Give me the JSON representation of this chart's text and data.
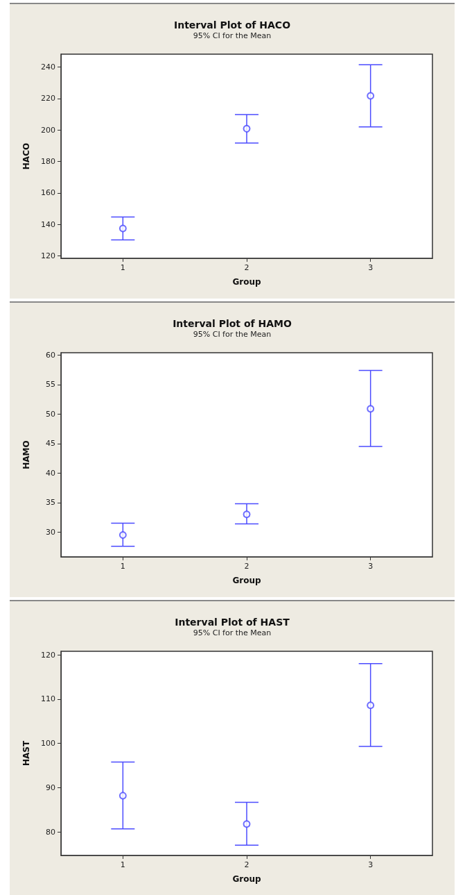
{
  "chart_data": [
    {
      "type": "scatter",
      "title": "Interval Plot of HACO",
      "subtitle": "95% CI for the Mean",
      "xlabel": "Group",
      "ylabel": "HACO",
      "categories": [
        "1",
        "2",
        "3"
      ],
      "series": [
        {
          "color": "#4b4bff",
          "values": [
            137.4,
            200.8,
            221.7
          ],
          "errors": [
            [
              130.1,
              144.7
            ],
            [
              191.7,
              209.8
            ],
            [
              202.0,
              241.5
            ]
          ]
        }
      ],
      "ylim": [
        118.4,
        248.2
      ],
      "yticks": [
        120,
        140,
        160,
        180,
        200,
        220,
        240
      ],
      "marker": "circle"
    },
    {
      "type": "scatter",
      "title": "Interval Plot of HAMO",
      "subtitle": "95% CI for the Mean",
      "xlabel": "Group",
      "ylabel": "HAMO",
      "categories": [
        "1",
        "2",
        "3"
      ],
      "series": [
        {
          "color": "#4b4bff",
          "values": [
            29.5,
            33.0,
            50.9
          ],
          "errors": [
            [
              27.6,
              31.5
            ],
            [
              31.4,
              34.8
            ],
            [
              44.5,
              57.4
            ]
          ]
        }
      ],
      "ylim": [
        25.8,
        60.4
      ],
      "yticks": [
        30,
        35,
        40,
        45,
        50,
        55,
        60
      ],
      "marker": "circle"
    },
    {
      "type": "scatter",
      "title": "Interval Plot of HAST",
      "subtitle": "95% CI for the Mean",
      "xlabel": "Group",
      "ylabel": "HAST",
      "categories": [
        "1",
        "2",
        "3"
      ],
      "series": [
        {
          "color": "#4b4bff",
          "values": [
            88.2,
            81.8,
            108.6
          ],
          "errors": [
            [
              80.7,
              95.8
            ],
            [
              77.0,
              86.7
            ],
            [
              99.3,
              118.0
            ]
          ]
        }
      ],
      "ylim": [
        74.7,
        120.8
      ],
      "yticks": [
        80,
        90,
        100,
        110,
        120
      ],
      "marker": "circle"
    }
  ]
}
